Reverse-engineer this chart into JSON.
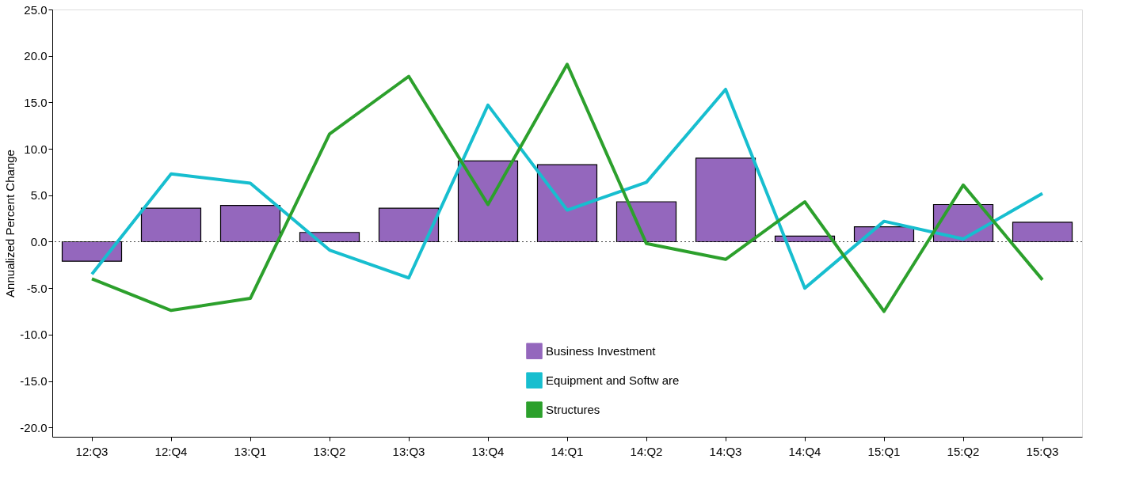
{
  "chart_data": {
    "type": "bar",
    "ylabel": "Annualized Percent Change",
    "categories": [
      "12:Q3",
      "12:Q4",
      "13:Q1",
      "13:Q2",
      "13:Q3",
      "13:Q4",
      "14:Q1",
      "14:Q2",
      "14:Q3",
      "14:Q4",
      "15:Q1",
      "15:Q2",
      "15:Q3"
    ],
    "series": [
      {
        "name": "Business Investment",
        "color": "#9467bd",
        "values": [
          -2.1,
          3.6,
          3.9,
          1.0,
          3.6,
          8.7,
          8.3,
          4.3,
          9.0,
          0.6,
          1.6,
          4.0,
          2.1
        ]
      },
      {
        "name": "Equipment and Softw are",
        "type": "line",
        "color": "#17becf",
        "values": [
          -3.5,
          7.3,
          6.3,
          -0.9,
          -3.9,
          14.7,
          3.4,
          6.4,
          16.4,
          -5.0,
          2.2,
          0.3,
          5.2
        ]
      },
      {
        "name": "Structures",
        "type": "line",
        "color": "#2ca02c",
        "values": [
          -4.0,
          -7.4,
          -6.1,
          11.6,
          17.8,
          4.0,
          19.1,
          -0.2,
          -1.9,
          4.3,
          -7.5,
          6.1,
          -4.1
        ]
      }
    ],
    "ylim": [
      -21,
      25
    ],
    "yticks": [
      {
        "value": -20,
        "label": "-20.0"
      },
      {
        "value": -15,
        "label": "-15.0"
      },
      {
        "value": -10,
        "label": "-10.0"
      },
      {
        "value": -5,
        "label": "-5.0"
      },
      {
        "value": 0,
        "label": "0.0"
      },
      {
        "value": 5,
        "label": "5.0"
      },
      {
        "value": 10,
        "label": "10.0"
      },
      {
        "value": 15,
        "label": "15.0"
      },
      {
        "value": 20,
        "label": "20.0"
      },
      {
        "value": 25,
        "label": "25.0"
      }
    ],
    "ref_lines": [
      {
        "axis": "y",
        "value": 0,
        "color": "#444444",
        "line_style": "dotted"
      }
    ],
    "grid": false,
    "legend": "bottom",
    "line_style": "solid",
    "marker": "none"
  }
}
